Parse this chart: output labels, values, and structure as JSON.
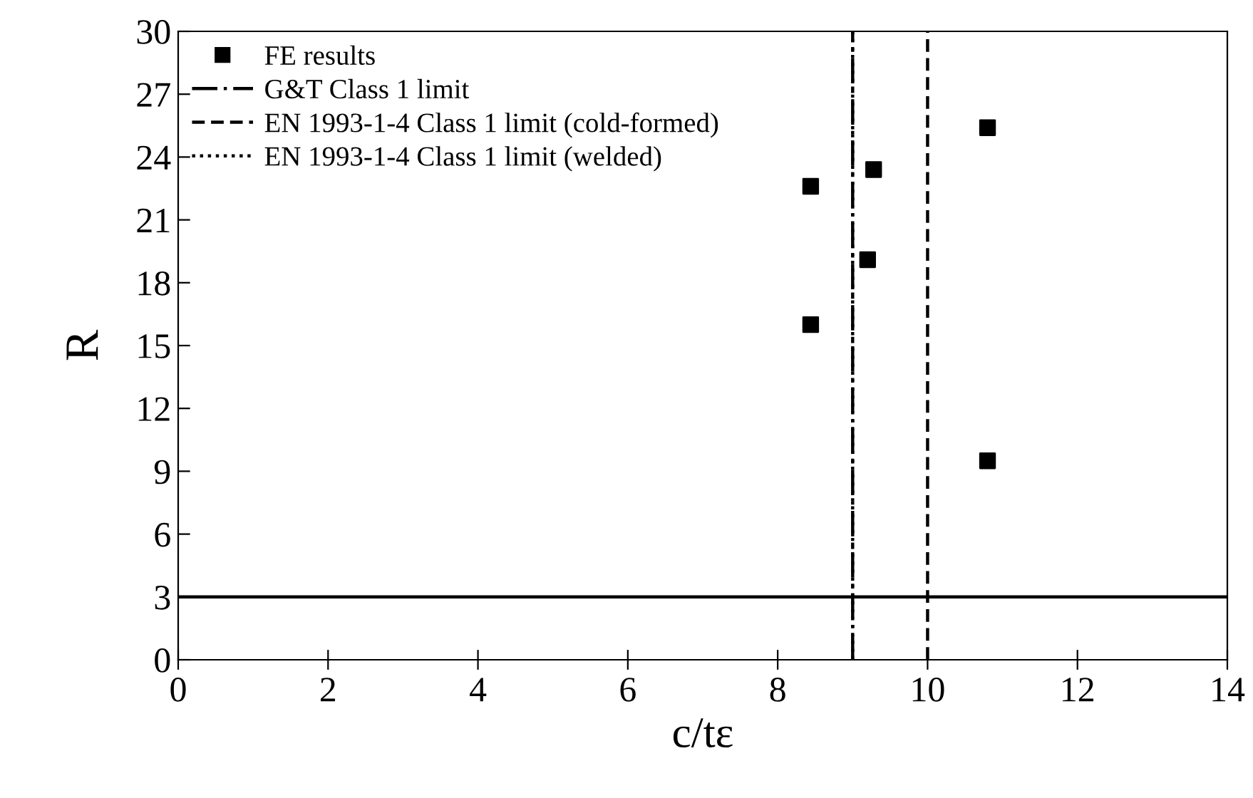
{
  "chart_data": {
    "type": "scatter",
    "xlabel": "c/tε",
    "ylabel": "R",
    "series": [
      {
        "name": "FE results",
        "color": "#000000",
        "marker": "square",
        "x": [
          8.44,
          8.44,
          9.2,
          9.28,
          10.8,
          10.8
        ],
        "values": [
          22.6,
          16.0,
          19.1,
          23.4,
          9.5,
          25.4
        ]
      },
      {
        "name": "G&T Class 1 limit",
        "type": "line",
        "color": "#000000",
        "line_style": "dashdot",
        "x": [
          9,
          9
        ],
        "values": [
          0,
          30
        ]
      },
      {
        "name": "EN 1993-1-4 Class 1 limit (cold-formed)",
        "type": "line",
        "color": "#000000",
        "line_style": "dashed",
        "x": [
          10,
          10
        ],
        "values": [
          0,
          30
        ]
      },
      {
        "name": "EN 1993-1-4 Class 1 limit (welded)",
        "type": "line",
        "color": "#000000",
        "line_style": "dotted",
        "x": [
          9,
          9
        ],
        "values": [
          0,
          30
        ]
      }
    ],
    "ref_lines": [
      {
        "axis": "y",
        "value": 3,
        "color": "#000000",
        "line_style": "solid"
      }
    ],
    "xlim": [
      0,
      14
    ],
    "xticks": [
      0,
      2,
      4,
      6,
      8,
      10,
      12,
      14
    ],
    "ylim": [
      0,
      30
    ],
    "yticks": [
      0,
      3,
      6,
      9,
      12,
      15,
      18,
      21,
      24,
      27,
      30
    ],
    "grid": false,
    "legend": "top left"
  }
}
